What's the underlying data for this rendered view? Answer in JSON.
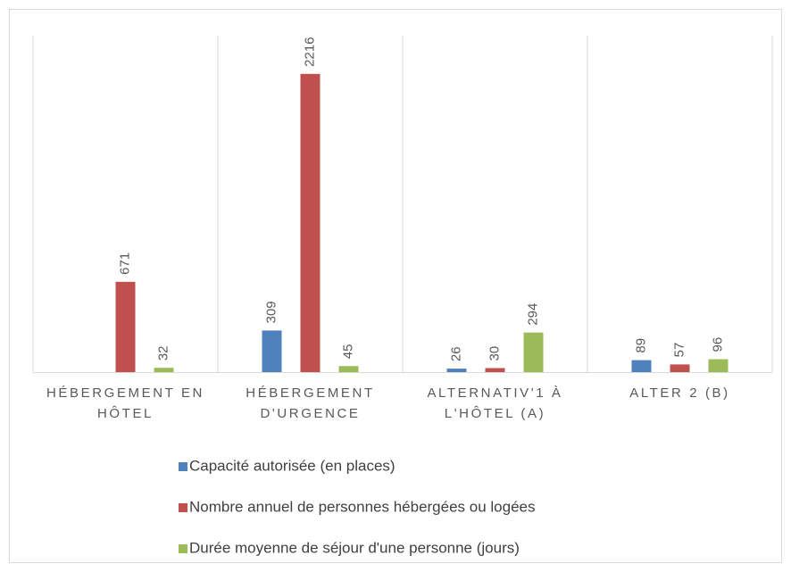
{
  "chart_data": {
    "type": "bar",
    "categories": [
      "HÉBERGEMENT EN HÔTEL",
      "HÉBERGEMENT D'URGENCE",
      "ALTERNATIV'1 À L'HÔTEL (A)",
      "ALTER 2 (B)"
    ],
    "series": [
      {
        "name": "Capacité autorisée (en places)",
        "color": "#4f81bd",
        "values": [
          null,
          309,
          26,
          89
        ]
      },
      {
        "name": "Nombre annuel de personnes hébergées ou logées",
        "color": "#c0504d",
        "values": [
          671,
          2216,
          30,
          57
        ]
      },
      {
        "name": "Durée moyenne de séjour d'une personne (jours)",
        "color": "#9bbb59",
        "values": [
          32,
          45,
          294,
          96
        ]
      }
    ],
    "ylim": [
      0,
      2500
    ]
  }
}
